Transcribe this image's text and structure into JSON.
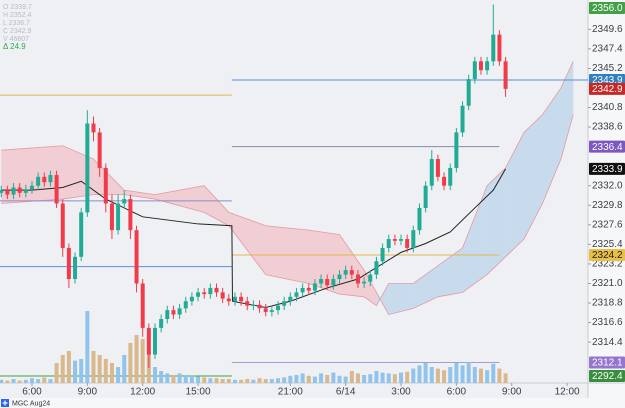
{
  "chart_data": {
    "type": "candlestick",
    "symbol": "MGC Aug24",
    "info": [
      "O 2339.7",
      "H 2352.4",
      "L 2336.7",
      "C 2342.9",
      "V 46607"
    ],
    "delta": "Δ 24.9",
    "xlim": [
      -5.2,
      90.4
    ],
    "ylim": [
      2309.8,
      2352.9
    ],
    "vlim": [
      0,
      10000
    ],
    "xticks": [
      {
        "value": 0,
        "label": "6:00"
      },
      {
        "value": 9,
        "label": "9:00"
      },
      {
        "value": 18,
        "label": "12:00"
      },
      {
        "value": 27,
        "label": "15:00"
      },
      {
        "value": 42,
        "label": "21:00"
      },
      {
        "value": 51,
        "label": "6/14"
      },
      {
        "value": 60,
        "label": "3:00"
      },
      {
        "value": 69,
        "label": "6:00"
      },
      {
        "value": 78,
        "label": "9:00"
      },
      {
        "value": 87,
        "label": "12:00"
      }
    ],
    "yticks": [
      2349.6,
      2347.4,
      2345.2,
      2340.8,
      2338.6,
      {
        "value": 2332,
        "label": "2332.0"
      },
      2329.8,
      2327.6,
      2325.4,
      2323.2,
      {
        "value": 2321,
        "label": "2321.0"
      },
      2318.8,
      2316.6,
      2314.4
    ],
    "up_color": "#22ab94",
    "down_color": "#ef3b4a",
    "vol_up_color": "#90c4ec",
    "vol_down_color": "#d9b88c",
    "x": [
      -5,
      -4,
      -3,
      -2,
      -1,
      0,
      1,
      2,
      3,
      4,
      5,
      6,
      7,
      8,
      9,
      10,
      11,
      12,
      13,
      14,
      15,
      16,
      17,
      18,
      19,
      20,
      21,
      22,
      23,
      24,
      25,
      26,
      27,
      28,
      29,
      30,
      31,
      32,
      33,
      34,
      35,
      36,
      37,
      38,
      39,
      40,
      41,
      42,
      43,
      44,
      45,
      46,
      47,
      48,
      49,
      50,
      51,
      52,
      53,
      54,
      55,
      56,
      57,
      58,
      59,
      60,
      61,
      62,
      63,
      64,
      65,
      66,
      67,
      68,
      69,
      70,
      71,
      72,
      73,
      74,
      75,
      76,
      77
    ],
    "ohlc": [
      [
        2331.2,
        2332.0,
        2330.7,
        2331.5
      ],
      [
        2331.5,
        2332.0,
        2330.5,
        2331.0
      ],
      [
        2331.0,
        2332.3,
        2330.5,
        2331.8
      ],
      [
        2331.8,
        2332.3,
        2330.7,
        2331.2
      ],
      [
        2331.2,
        2332.1,
        2330.7,
        2331.6
      ],
      [
        2331.6,
        2332.5,
        2331.1,
        2332.0
      ],
      [
        2332.0,
        2333.5,
        2331.5,
        2333.0
      ],
      [
        2333.0,
        2333.5,
        2331.9,
        2332.4
      ],
      [
        2332.4,
        2333.7,
        2331.9,
        2333.2
      ],
      [
        2333.2,
        2333.7,
        2329.5,
        2330.0
      ],
      [
        2330.0,
        2330.5,
        2324.0,
        2325.0
      ],
      [
        2325.0,
        2325.5,
        2320.5,
        2321.5
      ],
      [
        2321.5,
        2324.5,
        2321.0,
        2324.0
      ],
      [
        2324.0,
        2329.5,
        2323.5,
        2329.0
      ],
      [
        2329.0,
        2340.5,
        2328.5,
        2339.0
      ],
      [
        2339.0,
        2339.8,
        2337.0,
        2338.0
      ],
      [
        2338.0,
        2338.5,
        2333.0,
        2334.0
      ],
      [
        2334.0,
        2334.5,
        2329.0,
        2330.0
      ],
      [
        2330.0,
        2331.0,
        2326.0,
        2327.0
      ],
      [
        2327.0,
        2331.0,
        2326.5,
        2330.0
      ],
      [
        2330.0,
        2331.5,
        2329.5,
        2330.5
      ],
      [
        2330.5,
        2331.0,
        2326.0,
        2327.0
      ],
      [
        2327.0,
        2327.5,
        2320.0,
        2321.0
      ],
      [
        2321.0,
        2321.5,
        2315.0,
        2316.0
      ],
      [
        2316.0,
        2316.5,
        2311.5,
        2313.0
      ],
      [
        2313.0,
        2316.5,
        2312.5,
        2316.0
      ],
      [
        2316.0,
        2317.5,
        2315.5,
        2317.0
      ],
      [
        2317.0,
        2318.5,
        2316.5,
        2318.0
      ],
      [
        2318.0,
        2318.5,
        2317.0,
        2317.5
      ],
      [
        2317.5,
        2318.7,
        2317.0,
        2318.2
      ],
      [
        2318.2,
        2319.5,
        2317.7,
        2319.0
      ],
      [
        2319.0,
        2320.0,
        2318.5,
        2319.5
      ],
      [
        2319.5,
        2320.5,
        2319.0,
        2320.0
      ],
      [
        2320.0,
        2320.5,
        2319.3,
        2319.8
      ],
      [
        2319.8,
        2321.0,
        2319.3,
        2320.5
      ],
      [
        2320.5,
        2321.0,
        2319.5,
        2320.0
      ],
      [
        2320.0,
        2320.5,
        2318.8,
        2319.3
      ],
      [
        2319.3,
        2319.8,
        2318.5,
        2319.0
      ],
      [
        2319.0,
        2320.0,
        2318.5,
        2319.5
      ],
      [
        2319.5,
        2320.0,
        2318.5,
        2319.0
      ],
      [
        2319.0,
        2319.5,
        2318.0,
        2318.5
      ],
      [
        2318.5,
        2319.1,
        2318.0,
        2318.6
      ],
      [
        2318.6,
        2319.1,
        2317.7,
        2318.2
      ],
      [
        2318.2,
        2318.7,
        2317.3,
        2317.8
      ],
      [
        2317.8,
        2318.5,
        2317.3,
        2318.0
      ],
      [
        2318.0,
        2319.0,
        2317.5,
        2318.5
      ],
      [
        2318.5,
        2319.5,
        2318.0,
        2319.0
      ],
      [
        2319.0,
        2320.0,
        2318.5,
        2319.5
      ],
      [
        2319.5,
        2320.5,
        2319.0,
        2320.0
      ],
      [
        2320.0,
        2321.0,
        2319.5,
        2320.5
      ],
      [
        2320.5,
        2321.0,
        2319.7,
        2320.2
      ],
      [
        2320.2,
        2321.5,
        2319.7,
        2321.0
      ],
      [
        2321.0,
        2322.0,
        2320.5,
        2321.5
      ],
      [
        2321.5,
        2322.0,
        2320.3,
        2320.8
      ],
      [
        2320.8,
        2322.0,
        2320.3,
        2321.5
      ],
      [
        2321.5,
        2322.5,
        2321.0,
        2322.0
      ],
      [
        2322.0,
        2323.0,
        2321.5,
        2322.5
      ],
      [
        2322.5,
        2323.0,
        2321.5,
        2322.0
      ],
      [
        2322.0,
        2322.5,
        2320.5,
        2321.0
      ],
      [
        2321.0,
        2321.7,
        2320.5,
        2321.2
      ],
      [
        2321.2,
        2322.5,
        2320.7,
        2322.0
      ],
      [
        2322.0,
        2324.0,
        2321.5,
        2323.5
      ],
      [
        2323.5,
        2325.5,
        2323.0,
        2325.0
      ],
      [
        2325.0,
        2326.5,
        2324.5,
        2326.0
      ],
      [
        2326.0,
        2326.5,
        2325.3,
        2325.8
      ],
      [
        2325.8,
        2326.5,
        2325.3,
        2326.0
      ],
      [
        2326.0,
        2326.5,
        2324.5,
        2325.0
      ],
      [
        2325.0,
        2327.5,
        2324.5,
        2327.0
      ],
      [
        2327.0,
        2330.0,
        2326.5,
        2329.5
      ],
      [
        2329.5,
        2332.5,
        2329.0,
        2332.0
      ],
      [
        2332.0,
        2336.0,
        2331.5,
        2335.0
      ],
      [
        2335.0,
        2335.5,
        2332.5,
        2333.0
      ],
      [
        2333.0,
        2333.5,
        2331.5,
        2332.0
      ],
      [
        2332.0,
        2334.5,
        2331.5,
        2334.0
      ],
      [
        2334.0,
        2338.5,
        2333.5,
        2338.0
      ],
      [
        2338.0,
        2341.5,
        2337.5,
        2341.0
      ],
      [
        2341.0,
        2344.5,
        2340.5,
        2344.0
      ],
      [
        2344.0,
        2346.5,
        2343.5,
        2346.0
      ],
      [
        2346.0,
        2346.5,
        2344.5,
        2345.0
      ],
      [
        2345.0,
        2346.5,
        2344.5,
        2346.0
      ],
      [
        2346.0,
        2352.4,
        2345.5,
        2349.0
      ],
      [
        2349.0,
        2349.5,
        2345.5,
        2346.0
      ],
      [
        2346.0,
        2346.5,
        2342.0,
        2342.9
      ]
    ],
    "volume": [
      400,
      300,
      500,
      300,
      400,
      600,
      500,
      700,
      500,
      2500,
      3500,
      4000,
      2800,
      3000,
      9000,
      4000,
      3500,
      3000,
      2500,
      2000,
      3500,
      5000,
      6000,
      5500,
      4000,
      2000,
      1500,
      1200,
      1000,
      1200,
      1000,
      900,
      800,
      700,
      600,
      600,
      500,
      500,
      400,
      400,
      500,
      400,
      600,
      500,
      500,
      600,
      700,
      900,
      1000,
      1200,
      900,
      800,
      1200,
      1000,
      1300,
      900,
      800,
      1500,
      1200,
      1000,
      1100,
      1500,
      1300,
      1200,
      1100,
      1300,
      1400,
      1800,
      2200,
      2500,
      2000,
      1800,
      1600,
      2000,
      2500,
      2200,
      2600,
      2000,
      1800,
      1600,
      2400,
      1800,
      1200
    ],
    "ma": {
      "color": "#222222",
      "x": [
        -5,
        0,
        5,
        8,
        12,
        18,
        27,
        32.5,
        32.6,
        38,
        42,
        48,
        53,
        56,
        60,
        64,
        68,
        72,
        75,
        77
      ],
      "values": [
        2331.5,
        2331.5,
        2331.8,
        2332.5,
        2330.5,
        2328.5,
        2327.7,
        2327.5,
        2319.0,
        2318.3,
        2319.0,
        2320.5,
        2321.5,
        2322.8,
        2324.5,
        2325.5,
        2326.8,
        2329.5,
        2331.5,
        2333.9
      ]
    },
    "cloud": {
      "up_color": "#a9cbe8",
      "down_color": "#f2b3ba",
      "line_color": "#e59aa2",
      "x": [
        -5,
        5,
        10,
        15,
        20,
        28,
        32,
        38,
        45,
        50,
        54,
        56,
        58,
        62,
        66,
        70,
        74,
        77,
        80,
        83,
        86,
        88
      ],
      "span_a": [
        2330,
        2330.5,
        2331,
        2331,
        2330.5,
        2329,
        2327.5,
        2322,
        2321,
        2319.8,
        2319.5,
        2318.5,
        2321,
        2321,
        2323,
        2325,
        2332,
        2334,
        2338,
        2340,
        2343,
        2346
      ],
      "span_b": [
        2336,
        2336.5,
        2335,
        2331.5,
        2331,
        2332,
        2329,
        2327.5,
        2327,
        2326.5,
        2322.5,
        2320,
        2317.5,
        2318.2,
        2319.5,
        2320,
        2322,
        2324,
        2326,
        2330,
        2335,
        2340
      ]
    },
    "levels": [
      {
        "value": 2343.9,
        "color": "#5b8fd4",
        "from": 32.5,
        "to": 90.4
      },
      {
        "value": 2336.4,
        "color": "#8a8aa8",
        "from": 32.5,
        "to": 76
      },
      {
        "value": 2324.2,
        "color": "#e0b84a",
        "from": 32.5,
        "to": 76
      },
      {
        "value": 2312.1,
        "color": "#9f9fd0",
        "from": 32.5,
        "to": 76
      },
      {
        "value": 2342.2,
        "color": "#e0b84a",
        "from": -5.2,
        "to": 32.5
      },
      {
        "value": 2330.3,
        "color": "#8c8cc8",
        "from": -5.2,
        "to": 32.5
      },
      {
        "value": 2322.9,
        "color": "#5b8fd4",
        "from": -5.2,
        "to": 32.5
      },
      {
        "value": 2292.4,
        "color": "#43a047",
        "from": -5.2,
        "to": 32.5
      }
    ],
    "price_labels": [
      {
        "value": 2356,
        "label": "2356.0",
        "color": "#43a047",
        "text_color": "#ffffff"
      },
      {
        "value": 2343.9,
        "label": "2343.9",
        "color": "#2f7fc1",
        "text_color": "#ffffff"
      },
      {
        "value": 2342.9,
        "label": "2342.9",
        "color": "#c62828",
        "text_color": "#ffffff"
      },
      {
        "value": 2336.4,
        "label": "2336.4",
        "color": "#7e57c2",
        "text_color": "#ffffff"
      },
      {
        "value": 2333.9,
        "label": "2333.9",
        "color": "#111111",
        "text_color": "#ffffff"
      },
      {
        "value": 2324.2,
        "label": "2324.2",
        "color": "#e9c046",
        "text_color": "#222222"
      },
      {
        "value": 2312.1,
        "label": "2312.1",
        "color": "#9575cd",
        "text_color": "#ffffff"
      },
      {
        "value": 2292.4,
        "label": "2292.4",
        "color": "#388e3c",
        "text_color": "#ffffff"
      }
    ]
  }
}
